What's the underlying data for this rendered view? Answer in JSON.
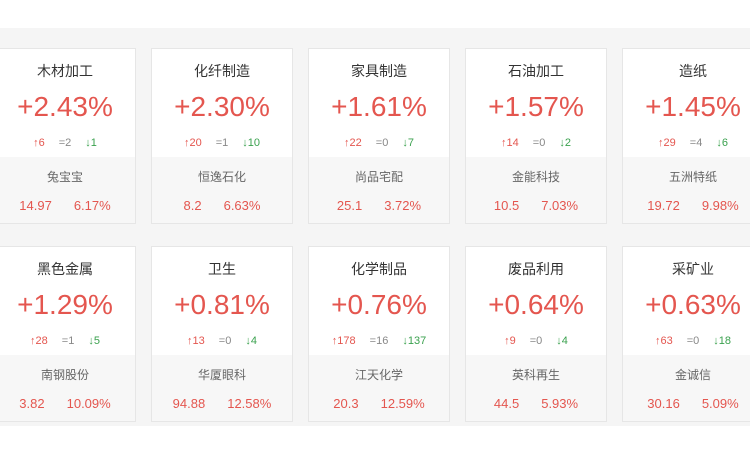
{
  "cards": [
    {
      "name": "木材加工",
      "pct": "+2.43%",
      "up": "↑6",
      "flat": "=2",
      "down": "↓1",
      "stock": "兔宝宝",
      "price": "14.97",
      "change": "6.17%"
    },
    {
      "name": "化纤制造",
      "pct": "+2.30%",
      "up": "↑20",
      "flat": "=1",
      "down": "↓10",
      "stock": "恒逸石化",
      "price": "8.2",
      "change": "6.63%"
    },
    {
      "name": "家具制造",
      "pct": "+1.61%",
      "up": "↑22",
      "flat": "=0",
      "down": "↓7",
      "stock": "尚品宅配",
      "price": "25.1",
      "change": "3.72%"
    },
    {
      "name": "石油加工",
      "pct": "+1.57%",
      "up": "↑14",
      "flat": "=0",
      "down": "↓2",
      "stock": "金能科技",
      "price": "10.5",
      "change": "7.03%"
    },
    {
      "name": "造纸",
      "pct": "+1.45%",
      "up": "↑29",
      "flat": "=4",
      "down": "↓6",
      "stock": "五洲特纸",
      "price": "19.72",
      "change": "9.98%"
    },
    {
      "name": "黑色金属",
      "pct": "+1.29%",
      "up": "↑28",
      "flat": "=1",
      "down": "↓5",
      "stock": "南钢股份",
      "price": "3.82",
      "change": "10.09%"
    },
    {
      "name": "卫生",
      "pct": "+0.81%",
      "up": "↑13",
      "flat": "=0",
      "down": "↓4",
      "stock": "华厦眼科",
      "price": "94.88",
      "change": "12.58%"
    },
    {
      "name": "化学制品",
      "pct": "+0.76%",
      "up": "↑178",
      "flat": "=16",
      "down": "↓137",
      "stock": "江天化学",
      "price": "20.3",
      "change": "12.59%"
    },
    {
      "name": "废品利用",
      "pct": "+0.64%",
      "up": "↑9",
      "flat": "=0",
      "down": "↓4",
      "stock": "英科再生",
      "price": "44.5",
      "change": "5.93%"
    },
    {
      "name": "采矿业",
      "pct": "+0.63%",
      "up": "↑63",
      "flat": "=0",
      "down": "↓18",
      "stock": "金诚信",
      "price": "30.16",
      "change": "5.09%"
    }
  ]
}
